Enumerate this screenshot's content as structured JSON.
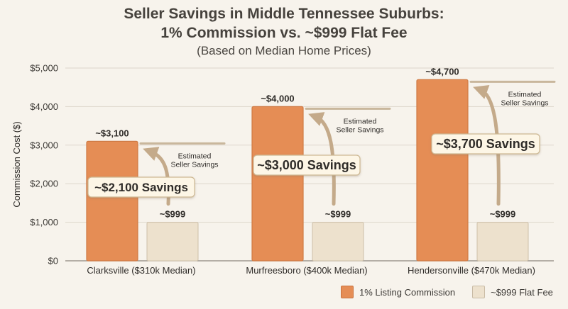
{
  "chart_data": {
    "type": "bar",
    "title_lines": [
      "Seller Savings in Middle Tennessee Suburbs:",
      "1% Commission vs. ~$999 Flat Fee"
    ],
    "subtitle": "(Based on Median Home Prices)",
    "ylabel": "Commission Cost ($)",
    "ylim": [
      0,
      5000
    ],
    "yticks": [
      0,
      1000,
      2000,
      3000,
      4000,
      5000
    ],
    "ytick_labels": [
      "$0",
      "$1,000",
      "$2,000",
      "$3,000",
      "$4,000",
      "$5,000"
    ],
    "grid": true,
    "categories": [
      "Clarksville ($310k Median)",
      "Murfreesboro ($400k Median)",
      "Hendersonville ($470k Median)"
    ],
    "series": [
      {
        "name": "1% Listing Commission",
        "values": [
          3100,
          4000,
          4700
        ],
        "labels": [
          "~$3,100",
          "~$4,000",
          "~$4,700"
        ],
        "color": "#e58d55"
      },
      {
        "name": "~$999 Flat Fee",
        "values": [
          999,
          999,
          999
        ],
        "labels": [
          "~$999",
          "~$999",
          "~$999"
        ],
        "color": "#ede1cd"
      }
    ],
    "savings_labels": [
      "~$2,100 Savings",
      "~$3,000 Savings",
      "~$3,700 Savings"
    ],
    "savings_note": "Estimated Seller Savings",
    "legend_position": "bottom-right"
  }
}
